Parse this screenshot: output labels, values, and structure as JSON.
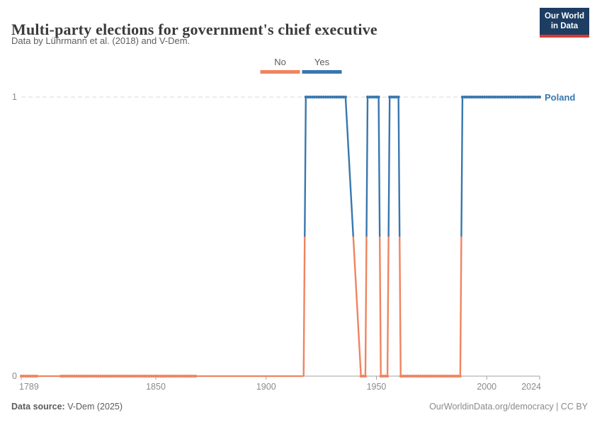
{
  "header": {
    "title": "Multi-party elections for government's chief executive",
    "subtitle": "Data by Lührmann et al. (2018) and V-Dem.",
    "logo_line1": "Our World",
    "logo_line2": "in Data"
  },
  "legend": {
    "items": [
      {
        "label": "No",
        "value": 0
      },
      {
        "label": "Yes",
        "value": 1
      }
    ]
  },
  "chart_data": {
    "type": "line",
    "title": "Multi-party elections for government's chief executive",
    "entity_label": "Poland",
    "xlabel": "",
    "ylabel": "",
    "xlim": [
      1789,
      2024
    ],
    "ylim": [
      0,
      1
    ],
    "x_ticks": [
      1789,
      1850,
      1900,
      1950,
      2000,
      2024
    ],
    "y_ticks": [
      0,
      1
    ],
    "grid": "dashed-line-at-y1",
    "legend_position": "top-center",
    "value_labels": {
      "0": "No",
      "1": "Yes"
    },
    "runs": [
      {
        "start": 1789,
        "end": 1796,
        "value": 0,
        "dots": true
      },
      {
        "start": 1796,
        "end": 1807,
        "value": 0,
        "dots": false
      },
      {
        "start": 1807,
        "end": 1868,
        "value": 0,
        "dots": true
      },
      {
        "start": 1868,
        "end": 1917,
        "value": 0,
        "dots": false
      },
      {
        "start": 1918,
        "end": 1936,
        "value": 1,
        "dots": true
      },
      {
        "start": 1943,
        "end": 1945,
        "value": 0,
        "dots": true
      },
      {
        "start": 1946,
        "end": 1951,
        "value": 1,
        "dots": true
      },
      {
        "start": 1952,
        "end": 1955,
        "value": 0,
        "dots": true
      },
      {
        "start": 1956,
        "end": 1960,
        "value": 1,
        "dots": true
      },
      {
        "start": 1961,
        "end": 1988,
        "value": 0,
        "dots": true
      },
      {
        "start": 1989,
        "end": 2024,
        "value": 1,
        "dots": true
      }
    ],
    "colors": {
      "no": "#EF8460",
      "yes": "#3877AE",
      "grid": "#d9d9d9",
      "axis": "#a3a3a3",
      "tick_text": "#8b8b8b"
    }
  },
  "footer": {
    "source_label": "Data source:",
    "source_value": "V-Dem (2025)",
    "credit": "OurWorldinData.org/democracy | CC BY"
  },
  "colors": {
    "logo_navy": "#1d3d63",
    "logo_red": "#d43b32",
    "title_text": "#3b3b3b",
    "subtitle_text": "#5e5e5e"
  }
}
